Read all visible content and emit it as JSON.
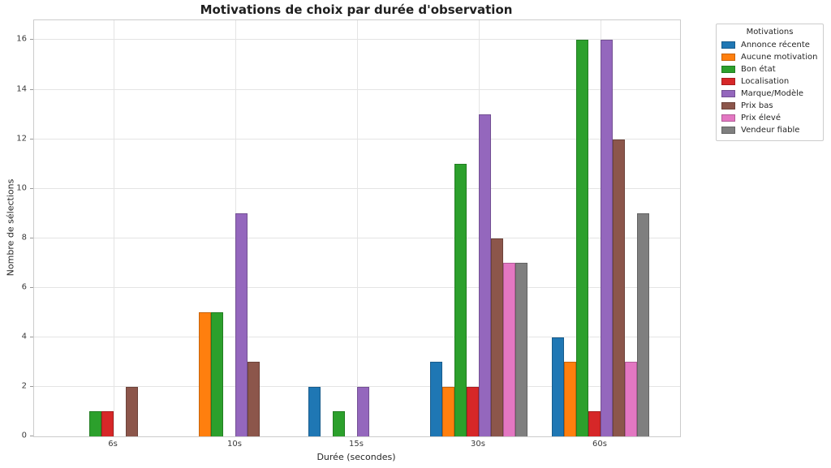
{
  "chart_data": {
    "type": "bar",
    "title": "Motivations de choix par durée d'observation",
    "xlabel": "Durée (secondes)",
    "ylabel": "Nombre de sélections",
    "categories": [
      "6s",
      "10s",
      "15s",
      "30s",
      "60s"
    ],
    "series": [
      {
        "name": "Annonce récente",
        "color": "#1f77b4",
        "values": [
          0,
          0,
          2,
          3,
          4
        ]
      },
      {
        "name": "Aucune motivation",
        "color": "#ff7f0e",
        "values": [
          0,
          5,
          0,
          2,
          3
        ]
      },
      {
        "name": "Bon état",
        "color": "#2ca02c",
        "values": [
          1,
          5,
          1,
          11,
          16
        ]
      },
      {
        "name": "Localisation",
        "color": "#d62728",
        "values": [
          1,
          0,
          0,
          2,
          1
        ]
      },
      {
        "name": "Marque/Modèle",
        "color": "#9467bd",
        "values": [
          0,
          9,
          2,
          13,
          16
        ]
      },
      {
        "name": "Prix bas",
        "color": "#8c564b",
        "values": [
          2,
          3,
          0,
          8,
          12
        ]
      },
      {
        "name": "Prix élevé",
        "color": "#e377c2",
        "values": [
          0,
          0,
          0,
          7,
          3
        ]
      },
      {
        "name": "Vendeur fiable",
        "color": "#7f7f7f",
        "values": [
          0,
          0,
          0,
          7,
          9
        ]
      }
    ],
    "y_ticks": [
      0,
      2,
      4,
      6,
      8,
      10,
      12,
      14,
      16
    ],
    "ylim": [
      0,
      16.8
    ],
    "legend_title": "Motivations",
    "legend_position": "outside-top-right",
    "grid": true
  }
}
